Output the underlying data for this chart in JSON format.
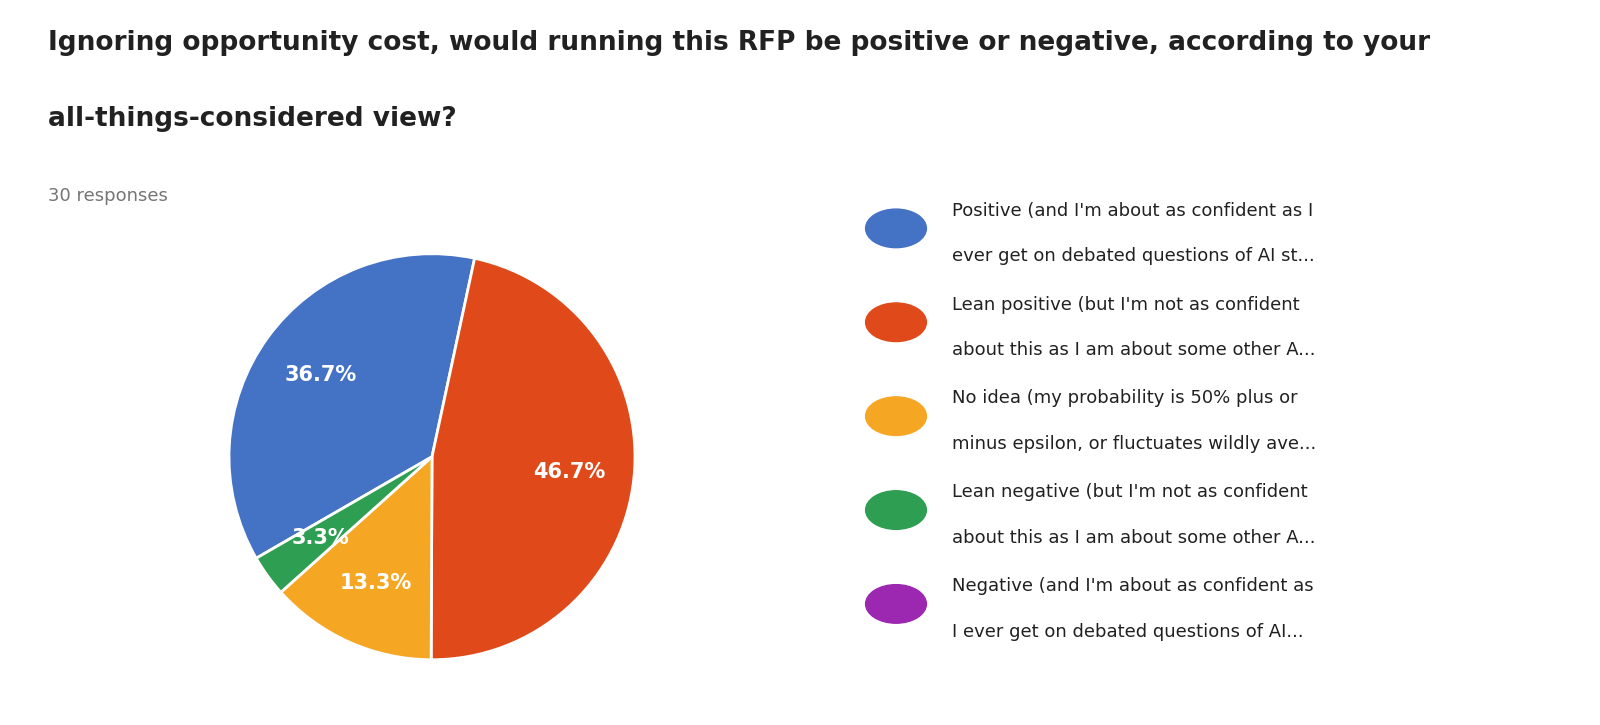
{
  "title_line1": "Ignoring opportunity cost, would running this RFP be positive or negative, according to your",
  "title_line2": "all-things-considered view?",
  "subtitle": "30 responses",
  "slices": [
    {
      "label": "Positive (and I'm about as confident as I\never get on debated questions of AI st...",
      "value": 36.7,
      "color": "#4472C4"
    },
    {
      "label": "Lean positive (but I'm not as confident\nabout this as I am about some other A...",
      "value": 46.7,
      "color": "#E04A1A"
    },
    {
      "label": "No idea (my probability is 50% plus or\nminus epsilon, or fluctuates wildly ave...",
      "value": 13.3,
      "color": "#F5A623"
    },
    {
      "label": "Lean negative (but I'm not as confident\nabout this as I am about some other A...",
      "value": 3.3,
      "color": "#2E9E52"
    },
    {
      "label": "Negative (and I'm about as confident as\nI ever get on debated questions of AI...",
      "value": 0.0,
      "color": "#9C27B0"
    }
  ],
  "title_fontsize": 19,
  "subtitle_fontsize": 13,
  "pct_fontsize": 15,
  "legend_fontsize": 13,
  "background_color": "#FFFFFF",
  "text_color": "#212121",
  "subtitle_color": "#757575"
}
